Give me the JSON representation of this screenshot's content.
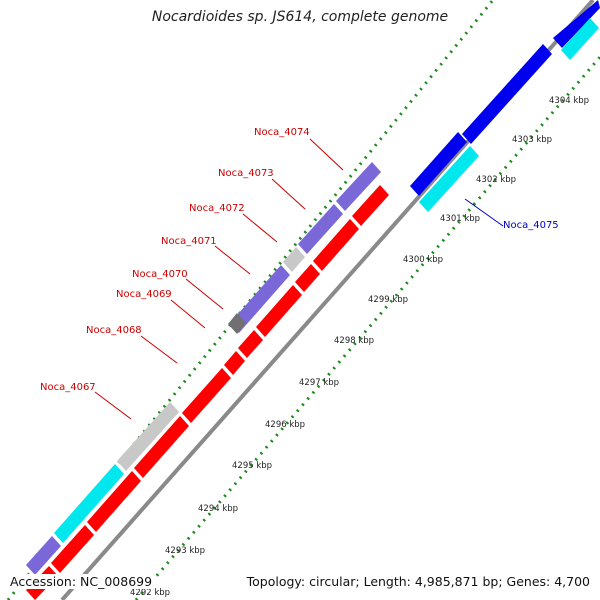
{
  "title": "Nocardioides sp. JS614, complete genome",
  "footer": {
    "accession": "Accession: NC_008699",
    "topology": "Topology: circular; Length: 4,985,871 bp; Genes: 4,700"
  },
  "colors": {
    "forward_cds": "#ff0000",
    "reverse_cds": "#0000ee",
    "forward_other": "#7b68d8",
    "reverse_other": "#00e8ee",
    "light_gray": "#c8c8c8",
    "dark_gray": "#707070",
    "backbone": "#8a8a8a",
    "dots": "#1a8a1a",
    "forward_label": "#cc0000",
    "reverse_label": "#0000cc"
  },
  "gene_labels": [
    {
      "name": "Noca_4074",
      "strand": "forward"
    },
    {
      "name": "Noca_4073",
      "strand": "forward"
    },
    {
      "name": "Noca_4072",
      "strand": "forward"
    },
    {
      "name": "Noca_4071",
      "strand": "forward"
    },
    {
      "name": "Noca_4070",
      "strand": "forward"
    },
    {
      "name": "Noca_4069",
      "strand": "forward"
    },
    {
      "name": "Noca_4068",
      "strand": "forward"
    },
    {
      "name": "Noca_4067",
      "strand": "forward"
    },
    {
      "name": "Noca_4075",
      "strand": "reverse"
    }
  ],
  "kbp_ticks": [
    "4292 kbp",
    "4293 kbp",
    "4294 kbp",
    "4295 kbp",
    "4296 kbp",
    "4297 kbp",
    "4298 kbp",
    "4299 kbp",
    "4300 kbp",
    "4301 kbp",
    "4302 kbp",
    "4303 kbp",
    "4304 kbp"
  ]
}
